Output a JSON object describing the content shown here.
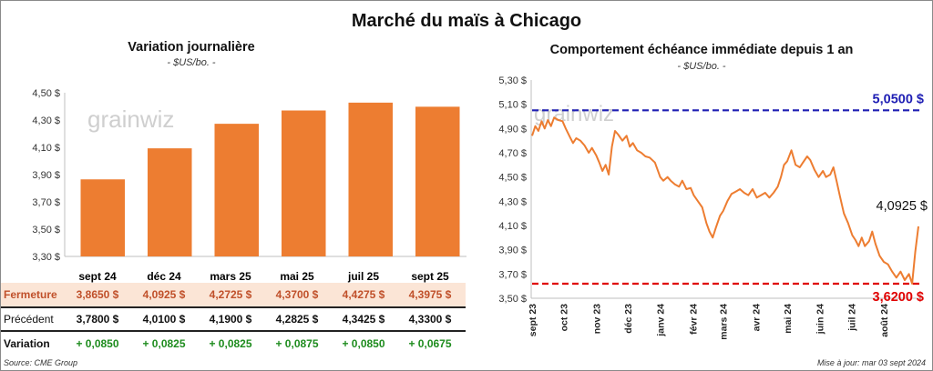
{
  "title": "Marché du maïs à Chicago",
  "colors": {
    "bar": "#ED7D31",
    "line": "#ED7D31",
    "high": "#1F1FB4",
    "low": "#E00000",
    "up": "#1E8C1E",
    "fermeture_bg": "#FBE5D6"
  },
  "left_chart": {
    "title": "Variation journalière",
    "unit": "- $US/bo. -",
    "watermark": "grainwiz",
    "y_ticks": [
      "4,50 $",
      "4,30 $",
      "4,10 $",
      "3,90 $",
      "3,70 $",
      "3,50 $",
      "3,30 $"
    ]
  },
  "right_chart": {
    "title": "Comportement  échéance immédiate depuis 1 an",
    "unit": "- $US/bo. -",
    "watermark": "grainwiz",
    "y_ticks": [
      "5,30 $",
      "5,10 $",
      "4,90 $",
      "4,70 $",
      "4,50 $",
      "4,30 $",
      "4,10 $",
      "3,90 $",
      "3,70 $",
      "3,50 $"
    ],
    "x_ticks": [
      "sept 23",
      "oct 23",
      "nov 23",
      "déc 23",
      "janv 24",
      "févr 24",
      "mars 24",
      "avr 24",
      "mai 24",
      "juin 24",
      "juil 24",
      "août 24"
    ],
    "high_label": "5,0500 $",
    "low_label": "3,6200 $",
    "last_label": "4,0925 $"
  },
  "table": {
    "row_labels": {
      "fermeture": "Fermeture",
      "precedent": "Précédent",
      "variation": "Variation"
    },
    "months": [
      "sept 24",
      "déc 24",
      "mars 25",
      "mai 25",
      "juil 25",
      "sept 25"
    ],
    "fermeture": [
      "3,8650  $",
      "4,0925  $",
      "4,2725  $",
      "4,3700  $",
      "4,4275  $",
      "4,3975  $"
    ],
    "precedent": [
      "3,7800  $",
      "4,0100  $",
      "4,1900  $",
      "4,2825  $",
      "4,3425  $",
      "4,3300  $"
    ],
    "variation": [
      "+ 0,0850",
      "+ 0,0825",
      "+ 0,0825",
      "+ 0,0875",
      "+ 0,0850",
      "+ 0,0675"
    ]
  },
  "footer": {
    "source": "Source: CME Group",
    "updated": "Mise à jour: mar 03 sept 2024"
  },
  "chart_data": [
    {
      "type": "bar",
      "title": "Variation journalière",
      "ylabel": "- $US/bo. -",
      "categories": [
        "sept 24",
        "déc 24",
        "mars 25",
        "mai 25",
        "juil 25",
        "sept 25"
      ],
      "values": [
        3.865,
        4.0925,
        4.2725,
        4.37,
        4.4275,
        4.3975
      ],
      "ylim": [
        3.3,
        4.5
      ],
      "grid": false
    },
    {
      "type": "line",
      "title": "Comportement  échéance immédiate depuis 1 an",
      "ylabel": "- $US/bo. -",
      "ylim": [
        3.5,
        5.3
      ],
      "x_start": "2023-09-01",
      "x_end": "2024-09-03",
      "reference_lines": [
        {
          "label": "5,0500 $",
          "value": 5.05,
          "style": "dashed",
          "color": "#1F1FB4"
        },
        {
          "label": "3,6200 $",
          "value": 3.62,
          "style": "dashed",
          "color": "#E00000"
        }
      ],
      "grid": false,
      "series": [
        {
          "points": [
            [
              "2023-09-01",
              4.84
            ],
            [
              "2023-09-04",
              4.92
            ],
            [
              "2023-09-07",
              4.88
            ],
            [
              "2023-09-10",
              4.96
            ],
            [
              "2023-09-13",
              4.9
            ],
            [
              "2023-09-16",
              4.97
            ],
            [
              "2023-09-19",
              4.92
            ],
            [
              "2023-09-22",
              4.99
            ],
            [
              "2023-09-26",
              4.97
            ],
            [
              "2023-09-30",
              4.96
            ],
            [
              "2023-10-03",
              4.9
            ],
            [
              "2023-10-07",
              4.83
            ],
            [
              "2023-10-10",
              4.78
            ],
            [
              "2023-10-13",
              4.82
            ],
            [
              "2023-10-17",
              4.8
            ],
            [
              "2023-10-21",
              4.76
            ],
            [
              "2023-10-25",
              4.7
            ],
            [
              "2023-10-28",
              4.74
            ],
            [
              "2023-11-01",
              4.68
            ],
            [
              "2023-11-04",
              4.62
            ],
            [
              "2023-11-07",
              4.55
            ],
            [
              "2023-11-10",
              4.6
            ],
            [
              "2023-11-13",
              4.52
            ],
            [
              "2023-11-16",
              4.75
            ],
            [
              "2023-11-19",
              4.88
            ],
            [
              "2023-11-22",
              4.85
            ],
            [
              "2023-11-26",
              4.8
            ],
            [
              "2023-11-30",
              4.84
            ],
            [
              "2023-12-03",
              4.75
            ],
            [
              "2023-12-06",
              4.78
            ],
            [
              "2023-12-10",
              4.72
            ],
            [
              "2023-12-14",
              4.7
            ],
            [
              "2023-12-18",
              4.67
            ],
            [
              "2023-12-22",
              4.66
            ],
            [
              "2023-12-27",
              4.62
            ],
            [
              "2024-01-01",
              4.5
            ],
            [
              "2024-01-04",
              4.47
            ],
            [
              "2024-01-08",
              4.5
            ],
            [
              "2024-01-11",
              4.47
            ],
            [
              "2024-01-15",
              4.44
            ],
            [
              "2024-01-19",
              4.42
            ],
            [
              "2024-01-22",
              4.47
            ],
            [
              "2024-01-26",
              4.4
            ],
            [
              "2024-01-30",
              4.41
            ],
            [
              "2024-02-02",
              4.35
            ],
            [
              "2024-02-06",
              4.3
            ],
            [
              "2024-02-10",
              4.25
            ],
            [
              "2024-02-14",
              4.12
            ],
            [
              "2024-02-17",
              4.05
            ],
            [
              "2024-02-20",
              4.0
            ],
            [
              "2024-02-23",
              4.08
            ],
            [
              "2024-02-27",
              4.18
            ],
            [
              "2024-03-01",
              4.22
            ],
            [
              "2024-03-05",
              4.3
            ],
            [
              "2024-03-09",
              4.36
            ],
            [
              "2024-03-13",
              4.38
            ],
            [
              "2024-03-17",
              4.4
            ],
            [
              "2024-03-21",
              4.37
            ],
            [
              "2024-03-25",
              4.35
            ],
            [
              "2024-03-29",
              4.4
            ],
            [
              "2024-04-02",
              4.33
            ],
            [
              "2024-04-06",
              4.35
            ],
            [
              "2024-04-10",
              4.37
            ],
            [
              "2024-04-14",
              4.33
            ],
            [
              "2024-04-18",
              4.37
            ],
            [
              "2024-04-22",
              4.42
            ],
            [
              "2024-04-25",
              4.5
            ],
            [
              "2024-04-28",
              4.6
            ],
            [
              "2024-05-01",
              4.63
            ],
            [
              "2024-05-05",
              4.72
            ],
            [
              "2024-05-09",
              4.6
            ],
            [
              "2024-05-13",
              4.58
            ],
            [
              "2024-05-16",
              4.62
            ],
            [
              "2024-05-20",
              4.67
            ],
            [
              "2024-05-23",
              4.64
            ],
            [
              "2024-05-27",
              4.56
            ],
            [
              "2024-05-31",
              4.5
            ],
            [
              "2024-06-04",
              4.55
            ],
            [
              "2024-06-07",
              4.5
            ],
            [
              "2024-06-11",
              4.52
            ],
            [
              "2024-06-14",
              4.58
            ],
            [
              "2024-06-17",
              4.47
            ],
            [
              "2024-06-20",
              4.35
            ],
            [
              "2024-06-24",
              4.2
            ],
            [
              "2024-06-28",
              4.12
            ],
            [
              "2024-07-02",
              4.02
            ],
            [
              "2024-07-05",
              3.98
            ],
            [
              "2024-07-08",
              3.93
            ],
            [
              "2024-07-11",
              4.0
            ],
            [
              "2024-07-14",
              3.93
            ],
            [
              "2024-07-18",
              3.97
            ],
            [
              "2024-07-21",
              4.05
            ],
            [
              "2024-07-24",
              3.95
            ],
            [
              "2024-07-28",
              3.85
            ],
            [
              "2024-08-01",
              3.8
            ],
            [
              "2024-08-05",
              3.78
            ],
            [
              "2024-08-09",
              3.72
            ],
            [
              "2024-08-13",
              3.67
            ],
            [
              "2024-08-17",
              3.72
            ],
            [
              "2024-08-21",
              3.65
            ],
            [
              "2024-08-25",
              3.7
            ],
            [
              "2024-08-28",
              3.62
            ],
            [
              "2024-08-31",
              3.88
            ],
            [
              "2024-09-03",
              4.0925
            ]
          ]
        }
      ]
    }
  ]
}
